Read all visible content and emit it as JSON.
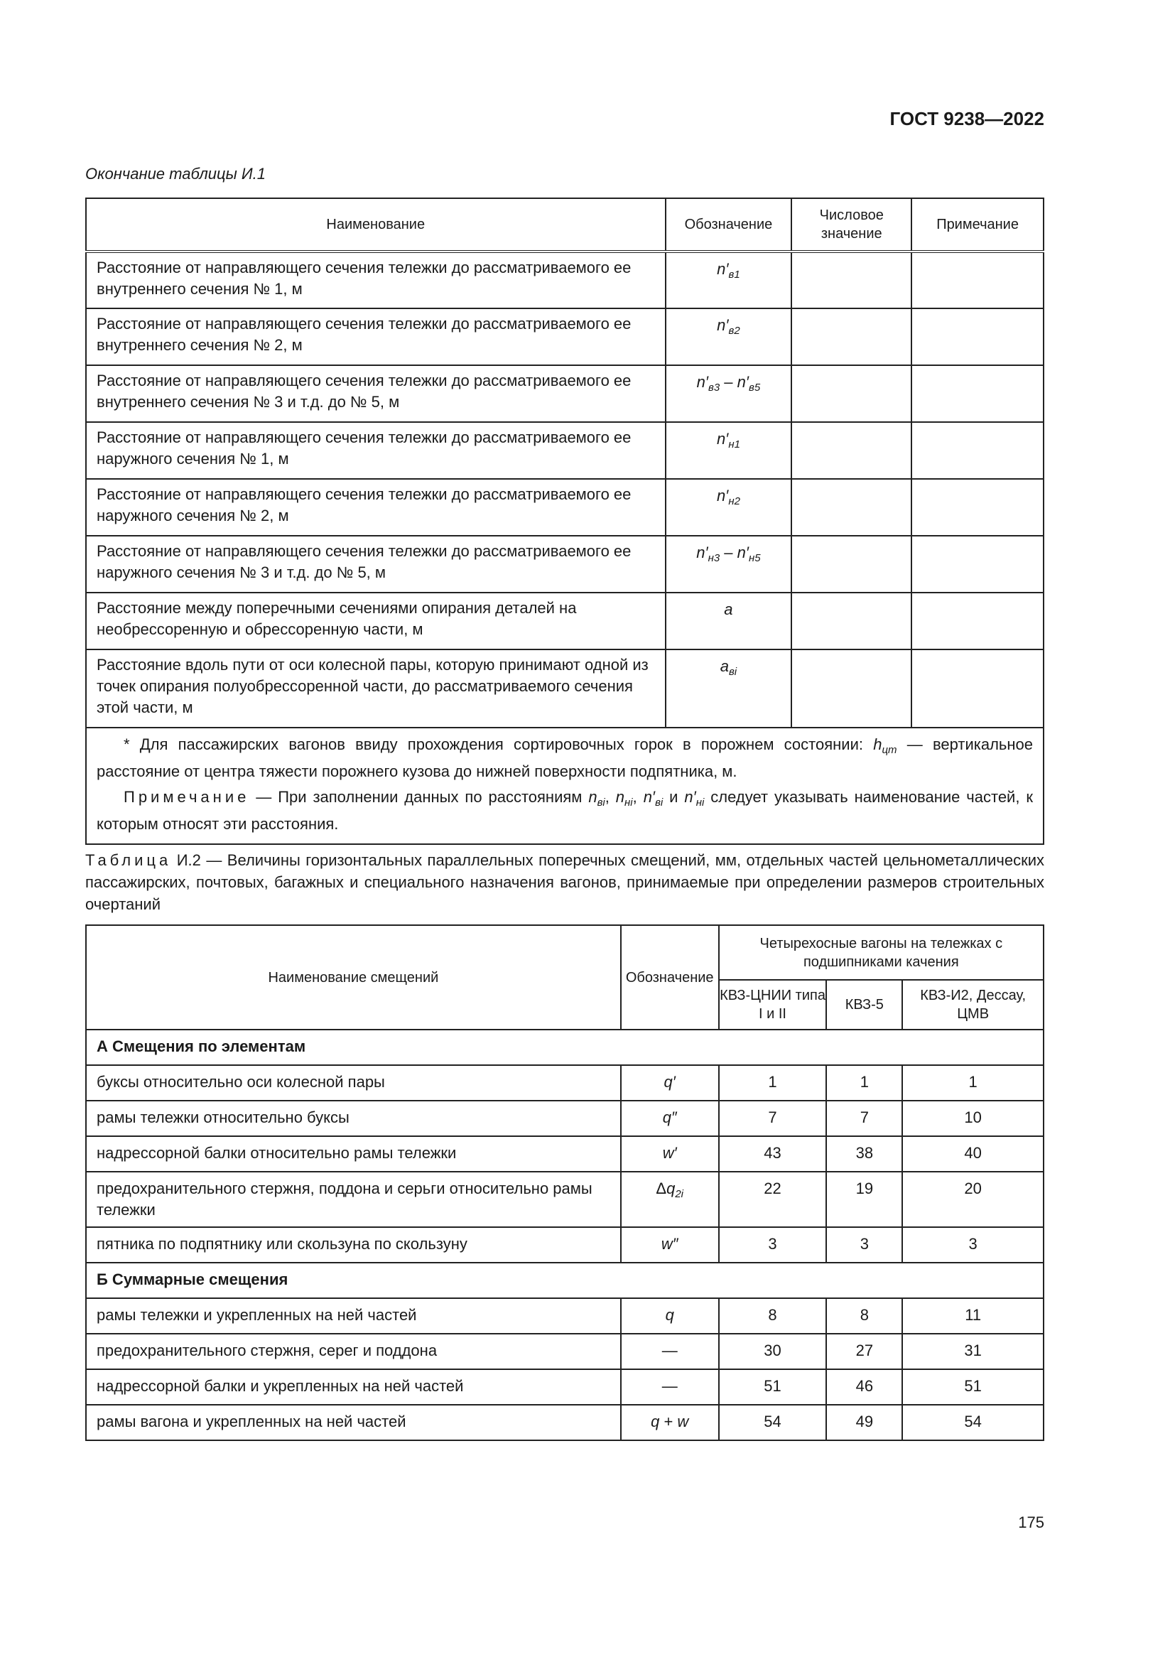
{
  "header": {
    "doc": "ГОСТ 9238—2022"
  },
  "table1": {
    "continuation": "Окончание таблицы И.1",
    "columns": [
      "Наименование",
      "Обозначение",
      "Числовое значение",
      "Примечание"
    ],
    "rows": [
      {
        "name": "Расстояние от направляющего сечения тележки до рассматривае­мого ее внутреннего сечения № 1, м",
        "symbol": [
          {
            "b": "n′",
            "s": "в1"
          }
        ],
        "value": "",
        "note": ""
      },
      {
        "name": "Расстояние от направляющего сечения тележки до рассматривае­мого ее внутреннего сечения № 2, м",
        "symbol": [
          {
            "b": "n′",
            "s": "в2"
          }
        ],
        "value": "",
        "note": ""
      },
      {
        "name": "Расстояние от направляющего сечения тележки до рассматривае­мого ее внутреннего сечения № 3 и т.д. до № 5, м",
        "symbol": [
          {
            "b": "n′",
            "s": "в3"
          },
          {
            "t": " – "
          },
          {
            "b": "n′",
            "s": "в5"
          }
        ],
        "value": "",
        "note": ""
      },
      {
        "name": "Расстояние от направляющего сечения тележки до рассматривае­мого ее наружного сечения № 1, м",
        "symbol": [
          {
            "b": "n′",
            "s": "н1"
          }
        ],
        "value": "",
        "note": ""
      },
      {
        "name": "Расстояние от направляющего сечения тележки до рассматривае­мого ее наружного сечения № 2, м",
        "symbol": [
          {
            "b": "n′",
            "s": "н2"
          }
        ],
        "value": "",
        "note": ""
      },
      {
        "name": "Расстояние от направляющего сечения тележки до рассматривае­мого ее наружного сечения № 3 и т.д. до № 5, м",
        "symbol": [
          {
            "b": "n′",
            "s": "н3"
          },
          {
            "t": " – "
          },
          {
            "b": "n′",
            "s": "н5"
          }
        ],
        "value": "",
        "note": ""
      },
      {
        "name": "Расстояние между поперечными сечениями опирания деталей на необрессоренную и обрессоренную части, м",
        "symbol": [
          {
            "b": "a"
          }
        ],
        "value": "",
        "note": ""
      },
      {
        "name": "Расстояние вдоль пути от оси колесной пары, которую принимают одной из точек опирания полуобрессоренной части, до рассматри­ваемого сечения этой части, м",
        "symbol": [
          {
            "b": "a",
            "s": "вi"
          }
        ],
        "value": "",
        "note": ""
      }
    ],
    "footnote": [
      {
        "t": "* Для пассажирских вагонов ввиду прохождения сортировочных горок в порожнем состоянии: "
      },
      {
        "b": "h",
        "s": "цт"
      },
      {
        "t": " — верти­кальное расстояние от центра тяжести порожнего кузова до нижней поверхности подпятника, м."
      }
    ],
    "note_label": "Примечание",
    "note": [
      {
        "t": " — При заполнении данных по расстояниям "
      },
      {
        "b": "n",
        "s": "вi"
      },
      {
        "t": ", "
      },
      {
        "b": "n",
        "s": "нi"
      },
      {
        "t": ", "
      },
      {
        "b": "n′",
        "s": "вi"
      },
      {
        "t": " и "
      },
      {
        "b": "n′",
        "s": "нi"
      },
      {
        "t": " следует указывать наименова­ние частей, к которым относят эти расстояния."
      }
    ]
  },
  "table2": {
    "caption_label": "Таблица",
    "caption": " И.2 — Величины горизонтальных параллельных поперечных смещений, мм, отдельных частей цель­нометаллических пассажирских, почтовых, багажных и специального назначения вагонов, принимаемые при опре­делении размеров строительных очертаний",
    "col_name": "Наименование смещений",
    "col_symbol": "Обозна­чение",
    "col_group": "Четырехосные вагоны на тележках с подшипниками качения",
    "col_sub": [
      "КВЗ-ЦНИИ типа I и II",
      "КВЗ-5",
      "КВЗ-И2, Дессау, ЦМВ"
    ],
    "rows": [
      {
        "section": "А Смещения по элементам"
      },
      {
        "name": "буксы относительно оси колесной пары",
        "symbol": [
          {
            "b": "q′"
          }
        ],
        "values": [
          "1",
          "1",
          "1"
        ]
      },
      {
        "name": "рамы тележки относительно буксы",
        "symbol": [
          {
            "b": "q″"
          }
        ],
        "values": [
          "7",
          "7",
          "10"
        ]
      },
      {
        "name": "надрессорной балки относительно рамы тележки",
        "symbol": [
          {
            "b": "w′"
          }
        ],
        "values": [
          "43",
          "38",
          "40"
        ]
      },
      {
        "name": "предохранительного стержня, поддона и серьги относительно рамы тележки",
        "symbol": [
          {
            "t": "Δ"
          },
          {
            "b": "q",
            "s": "2i"
          }
        ],
        "values": [
          "22",
          "19",
          "20"
        ]
      },
      {
        "name": "пятника по подпятнику или скользуна по скользуну",
        "symbol": [
          {
            "b": "w″"
          }
        ],
        "values": [
          "3",
          "3",
          "3"
        ]
      },
      {
        "section": "Б Суммарные смещения"
      },
      {
        "name": "рамы тележки и укрепленных на ней частей",
        "symbol": [
          {
            "b": "q"
          }
        ],
        "values": [
          "8",
          "8",
          "11"
        ]
      },
      {
        "name": "предохранительного стержня, серег и поддона",
        "symbol": [
          {
            "t": "—"
          }
        ],
        "values": [
          "30",
          "27",
          "31"
        ]
      },
      {
        "name": "надрессорной балки и укрепленных на ней частей",
        "symbol": [
          {
            "t": "—"
          }
        ],
        "values": [
          "51",
          "46",
          "51"
        ]
      },
      {
        "name": "рамы вагона и укрепленных на ней частей",
        "symbol": [
          {
            "b": "q"
          },
          {
            "t": " + "
          },
          {
            "b": "w"
          }
        ],
        "values": [
          "54",
          "49",
          "54"
        ]
      }
    ]
  },
  "page_number": "175"
}
